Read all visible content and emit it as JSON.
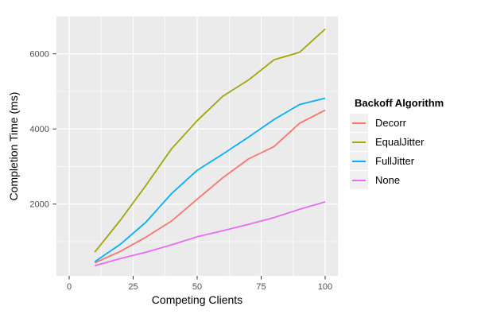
{
  "chart_data": {
    "type": "line",
    "title": "",
    "xlabel": "Competing Clients",
    "ylabel": "Completion Time (ms)",
    "legend_title": "Backoff Algorithm",
    "legend_position": "right",
    "grid": true,
    "panel_bg": "#EBEBEB",
    "grid_color": "#FFFFFF",
    "tick_color": "#333333",
    "tick_label_color": "#4D4D4D",
    "xlim": [
      -5,
      105
    ],
    "ylim": [
      90,
      7010
    ],
    "x_ticks": [
      0,
      25,
      50,
      75,
      100
    ],
    "y_ticks": [
      2000,
      4000,
      6000
    ],
    "x_minor_ticks": [
      12.5,
      37.5,
      62.5,
      87.5
    ],
    "y_minor_ticks": [
      1000,
      3000,
      5000,
      7000
    ],
    "x": [
      10,
      20,
      30,
      40,
      50,
      60,
      70,
      80,
      90,
      100
    ],
    "series": [
      {
        "name": "Decorr",
        "color": "#F8766D",
        "values": [
          435,
          740,
          1120,
          1550,
          2130,
          2700,
          3200,
          3530,
          4150,
          4500
        ]
      },
      {
        "name": "EqualJitter",
        "color": "#A3A500",
        "values": [
          720,
          1570,
          2500,
          3470,
          4220,
          4870,
          5300,
          5840,
          6040,
          6660
        ]
      },
      {
        "name": "FullJitter",
        "color": "#00B0F6",
        "values": [
          465,
          930,
          1520,
          2280,
          2900,
          3330,
          3780,
          4250,
          4650,
          4820
        ]
      },
      {
        "name": "None",
        "color": "#E76BF3",
        "values": [
          360,
          550,
          720,
          915,
          1130,
          1290,
          1460,
          1640,
          1860,
          2060
        ]
      }
    ]
  }
}
